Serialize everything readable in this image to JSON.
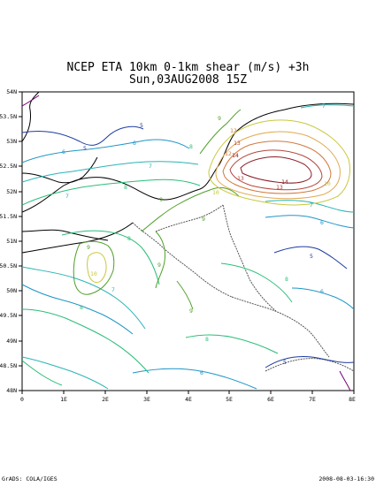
{
  "title": {
    "line1": "NCEP ETA 10km 0-1km shear (m/s) +3h",
    "line2": "Sun,03AUG2008 15Z"
  },
  "footer": {
    "credit": "GrADS: COLA/IGES",
    "timestamp": "2008-08-03-16:30"
  },
  "axes": {
    "x_ticks": [
      "0",
      "1E",
      "2E",
      "3E",
      "4E",
      "5E",
      "6E",
      "7E",
      "8E"
    ],
    "y_ticks": [
      "54N",
      "53.5N",
      "53N",
      "52.5N",
      "52N",
      "51.5N",
      "51N",
      "50.5N",
      "50N",
      "49.5N",
      "49N",
      "48.5N",
      "48N"
    ]
  },
  "contour_colors": {
    "5": "#1e3ca0",
    "6": "#1e96c8",
    "7": "#28b4b4",
    "8": "#28be78",
    "9": "#50a028",
    "10": "#c8c83c",
    "11": "#e1aa50",
    "12": "#d2783c",
    "13": "#b4463c",
    "14": "#8c1e28",
    "4": "#780078",
    "boundary": "#555555",
    "coast": "#000000"
  },
  "contour_labels": [
    {
      "text": "5",
      "level": "5"
    },
    {
      "text": "5",
      "level": "5"
    },
    {
      "text": "5",
      "level": "5"
    },
    {
      "text": "5",
      "level": "5"
    },
    {
      "text": "6",
      "level": "6"
    },
    {
      "text": "6",
      "level": "6"
    },
    {
      "text": "6",
      "level": "6"
    },
    {
      "text": "6",
      "level": "6"
    },
    {
      "text": "6",
      "level": "6"
    },
    {
      "text": "7",
      "level": "7"
    },
    {
      "text": "7",
      "level": "7"
    },
    {
      "text": "7",
      "level": "7"
    },
    {
      "text": "7",
      "level": "7"
    },
    {
      "text": "7",
      "level": "7"
    },
    {
      "text": "8",
      "level": "8"
    },
    {
      "text": "8",
      "level": "8"
    },
    {
      "text": "8",
      "level": "8"
    },
    {
      "text": "8",
      "level": "8"
    },
    {
      "text": "8",
      "level": "8"
    },
    {
      "text": "8",
      "level": "8"
    },
    {
      "text": "9",
      "level": "9"
    },
    {
      "text": "9",
      "level": "9"
    },
    {
      "text": "9",
      "level": "9"
    },
    {
      "text": "9",
      "level": "9"
    },
    {
      "text": "9",
      "level": "9"
    },
    {
      "text": "9",
      "level": "9"
    },
    {
      "text": "10",
      "level": "10"
    },
    {
      "text": "10",
      "level": "10"
    },
    {
      "text": "10",
      "level": "10"
    },
    {
      "text": "12",
      "level": "12"
    },
    {
      "text": "12",
      "level": "12"
    },
    {
      "text": "13",
      "level": "13"
    },
    {
      "text": "13",
      "level": "13"
    },
    {
      "text": "13",
      "level": "13"
    },
    {
      "text": "14",
      "level": "14"
    },
    {
      "text": "14",
      "level": "14"
    }
  ]
}
